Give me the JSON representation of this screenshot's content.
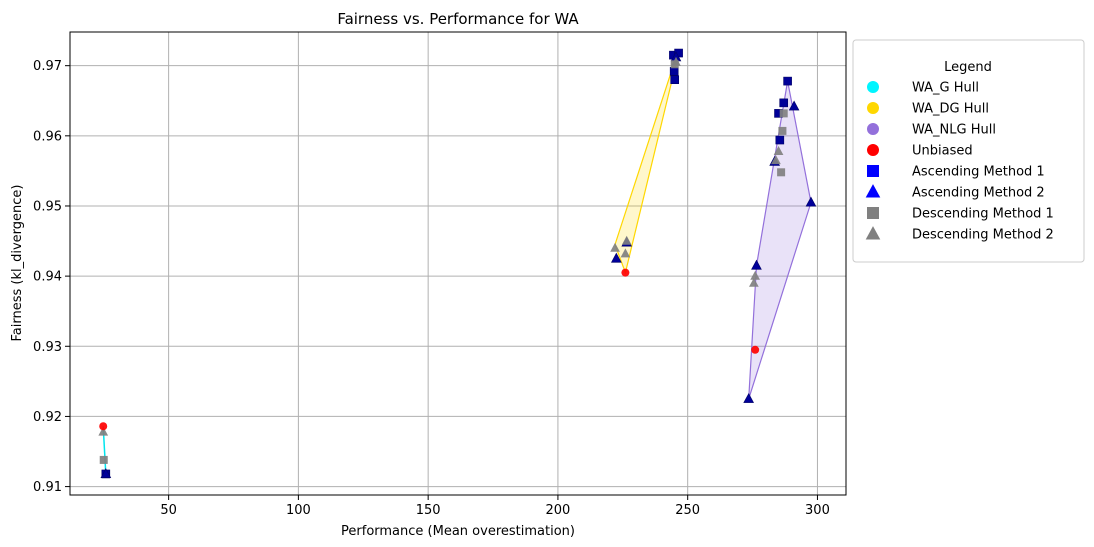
{
  "chart_data": {
    "type": "scatter",
    "title": "Fairness vs. Performance for WA",
    "xlabel": "Performance (Mean overestimation)",
    "ylabel": "Fairness (kl_divergence)",
    "xlim": [
      12,
      311
    ],
    "ylim": [
      0.9088,
      0.9748
    ],
    "xticks": [
      50,
      100,
      150,
      200,
      250,
      300
    ],
    "yticks": [
      0.91,
      0.92,
      0.93,
      0.94,
      0.95,
      0.96,
      0.97
    ],
    "xtick_labels": [
      "50",
      "100",
      "150",
      "200",
      "250",
      "300"
    ],
    "ytick_labels": [
      "0.91",
      "0.92",
      "0.93",
      "0.94",
      "0.95",
      "0.96",
      "0.97"
    ],
    "grid": true,
    "legend": {
      "title": "Legend",
      "placement": "outside-right",
      "entries": [
        {
          "label": "WA_G Hull",
          "marker": "circle",
          "color": "#00f5ff"
        },
        {
          "label": "WA_DG Hull",
          "marker": "circle",
          "color": "#ffd700"
        },
        {
          "label": "WA_NLG Hull",
          "marker": "circle",
          "color": "#9370db"
        },
        {
          "label": "Unbiased",
          "marker": "circle",
          "color": "#ff0000"
        },
        {
          "label": "Ascending Method 1",
          "marker": "square",
          "color": "#0000ff"
        },
        {
          "label": "Ascending Method 2",
          "marker": "triangle",
          "color": "#0000ff"
        },
        {
          "label": "Descending Method 1",
          "marker": "square",
          "color": "#808080"
        },
        {
          "label": "Descending Method 2",
          "marker": "triangle",
          "color": "#808080"
        }
      ]
    },
    "hulls": [
      {
        "name": "WA_G Hull",
        "color": "#00e5ee",
        "fill": false,
        "points": [
          [
            24.8,
            0.9186
          ],
          [
            25.8,
            0.9118
          ]
        ]
      },
      {
        "name": "WA_DG Hull",
        "color": "#ffd700",
        "fill": true,
        "points": [
          [
            222.0,
            0.9445
          ],
          [
            226.0,
            0.9405
          ],
          [
            246.5,
            0.9718
          ],
          [
            245.5,
            0.9712
          ]
        ]
      },
      {
        "name": "WA_NLG Hull",
        "color": "#9370db",
        "fill": true,
        "points": [
          [
            273.5,
            0.9225
          ],
          [
            297.5,
            0.9505
          ],
          [
            288.5,
            0.9678
          ],
          [
            276.5,
            0.9415
          ]
        ]
      }
    ],
    "series": [
      {
        "name": "Unbiased",
        "marker": "circle",
        "color": "#ff0000",
        "points": [
          [
            24.8,
            0.9186
          ],
          [
            226.0,
            0.9405
          ],
          [
            276.0,
            0.9295
          ]
        ]
      },
      {
        "name": "Ascending Method 1",
        "marker": "square",
        "color": "#000099",
        "points": [
          [
            25.8,
            0.9118
          ],
          [
            244.5,
            0.9715
          ],
          [
            246.5,
            0.9718
          ],
          [
            244.8,
            0.9692
          ],
          [
            245.0,
            0.968
          ],
          [
            287.0,
            0.9647
          ],
          [
            288.5,
            0.9678
          ],
          [
            285.0,
            0.9632
          ],
          [
            285.5,
            0.9594
          ]
        ]
      },
      {
        "name": "Ascending Method 2",
        "marker": "triangle",
        "color": "#000099",
        "points": [
          [
            25.8,
            0.9118
          ],
          [
            222.5,
            0.9425
          ],
          [
            226.5,
            0.9448
          ],
          [
            245.5,
            0.9712
          ],
          [
            273.5,
            0.9225
          ],
          [
            276.5,
            0.9415
          ],
          [
            283.5,
            0.9563
          ],
          [
            291.0,
            0.9642
          ],
          [
            297.5,
            0.9505
          ]
        ]
      },
      {
        "name": "Descending Method 1",
        "marker": "square",
        "color": "#808080",
        "points": [
          [
            25.0,
            0.9138
          ],
          [
            245.0,
            0.9702
          ],
          [
            286.0,
            0.9548
          ],
          [
            286.5,
            0.9607
          ],
          [
            287.0,
            0.9632
          ]
        ]
      },
      {
        "name": "Descending Method 2",
        "marker": "triangle",
        "color": "#808080",
        "points": [
          [
            24.8,
            0.9178
          ],
          [
            222.0,
            0.944
          ],
          [
            226.0,
            0.9432
          ],
          [
            226.5,
            0.945
          ],
          [
            245.5,
            0.9705
          ],
          [
            275.5,
            0.939
          ],
          [
            276.0,
            0.94
          ],
          [
            285.0,
            0.9578
          ],
          [
            284.0,
            0.9565
          ]
        ]
      }
    ]
  }
}
